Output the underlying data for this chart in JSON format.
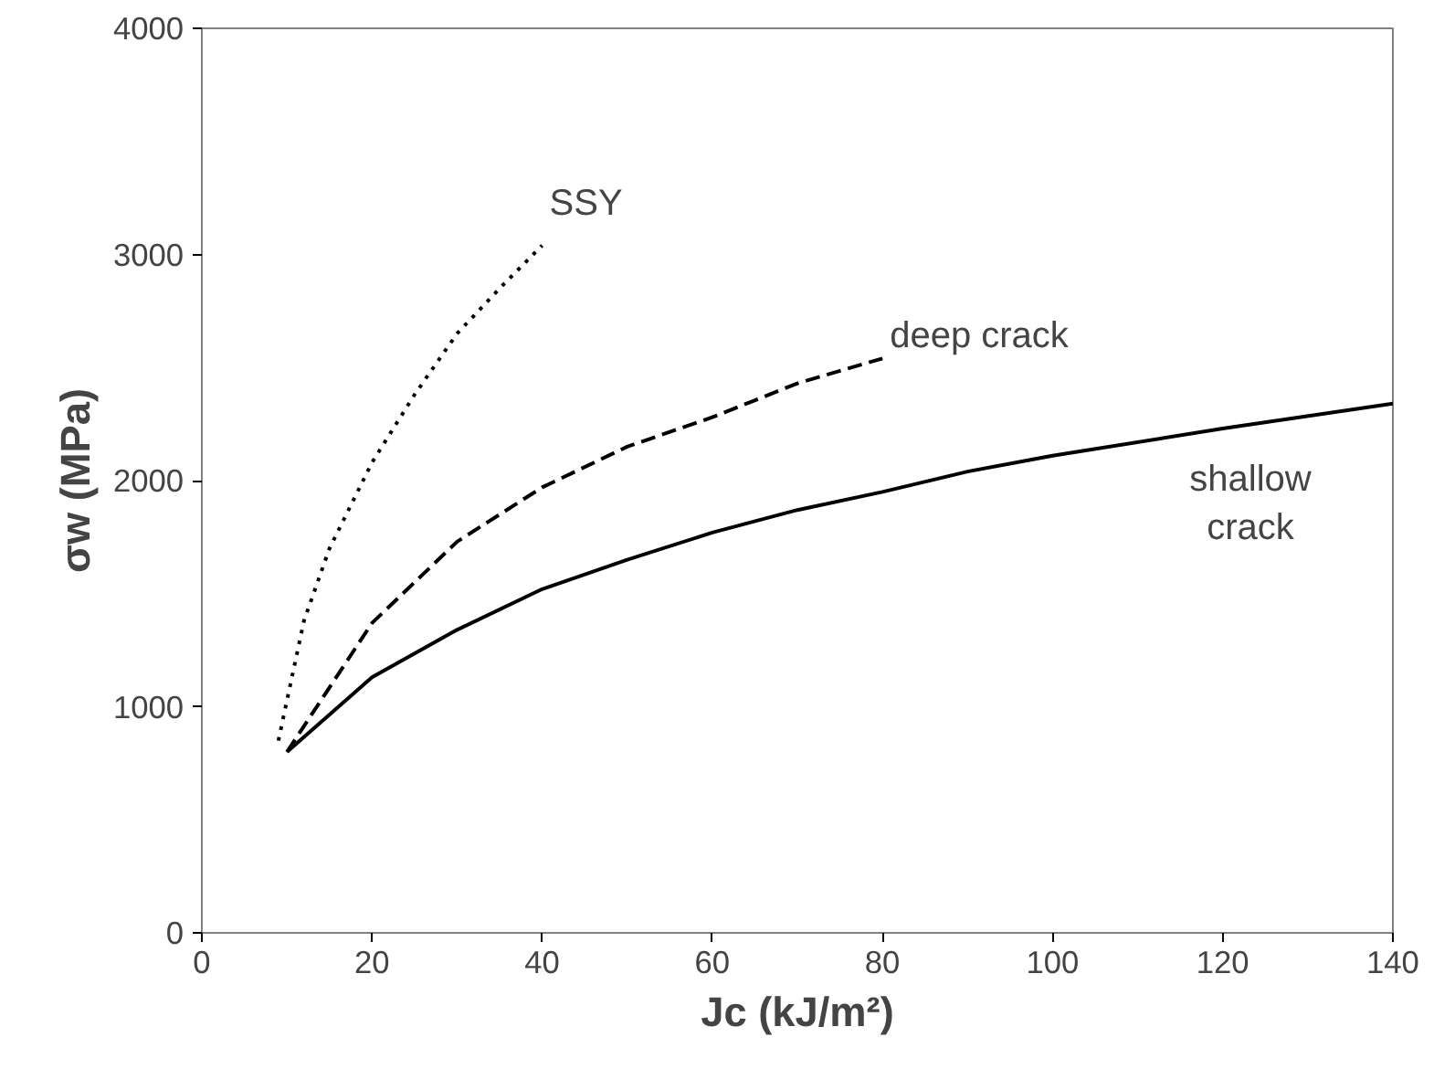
{
  "chart_data": {
    "type": "line",
    "xlabel": "Jc (kJ/m²)",
    "ylabel": "σw (MPa)",
    "xlim": [
      0,
      140
    ],
    "xticks": [
      0,
      20,
      40,
      60,
      80,
      100,
      120,
      140
    ],
    "ylim": [
      0,
      4000
    ],
    "yticks": [
      0,
      1000,
      2000,
      3000,
      4000
    ],
    "grid": false,
    "legend": false,
    "marker": "none",
    "series": [
      {
        "name": "SSY",
        "color": "#000000",
        "line_style": "dotted",
        "x": [
          9,
          12,
          15,
          20,
          25,
          30,
          35,
          40
        ],
        "values": [
          850,
          1380,
          1700,
          2080,
          2380,
          2650,
          2850,
          3040
        ]
      },
      {
        "name": "deep crack",
        "color": "#000000",
        "line_style": "dashed",
        "x": [
          10,
          20,
          30,
          40,
          50,
          60,
          70,
          80
        ],
        "values": [
          800,
          1370,
          1730,
          1970,
          2150,
          2280,
          2430,
          2540
        ]
      },
      {
        "name": "shallow\ncrack",
        "color": "#000000",
        "line_style": "solid",
        "x": [
          10,
          20,
          30,
          40,
          50,
          60,
          70,
          80,
          90,
          100,
          120,
          140
        ],
        "values": [
          800,
          1130,
          1340,
          1520,
          1650,
          1770,
          1870,
          1950,
          2040,
          2110,
          2230,
          2340
        ]
      }
    ]
  }
}
